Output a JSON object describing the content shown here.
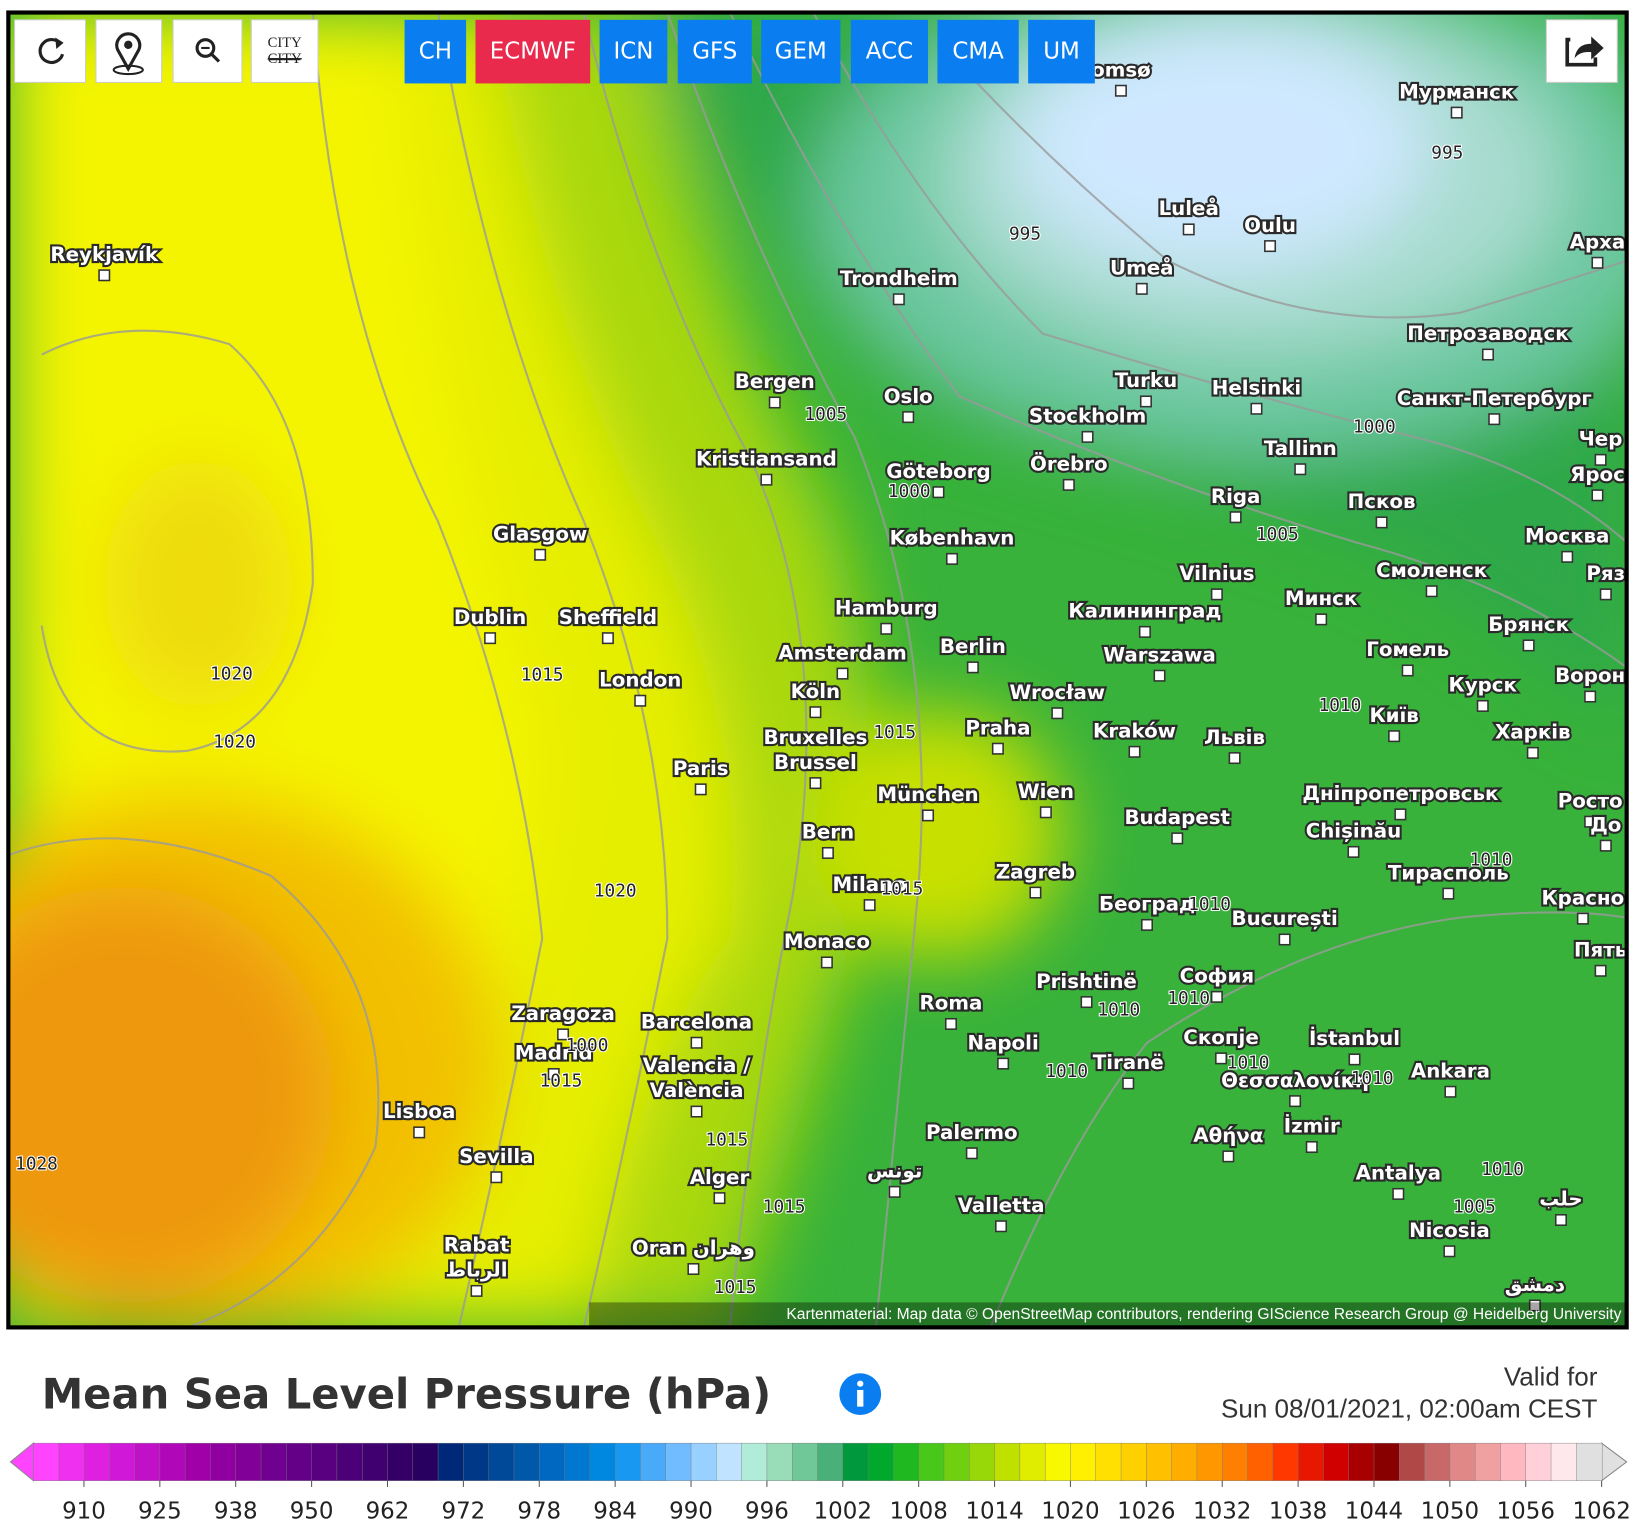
{
  "toolbar": {
    "city_button": "CITY",
    "models": [
      "CH",
      "ECMWF",
      "ICN",
      "GFS",
      "GEM",
      "ACC",
      "CMA",
      "UM"
    ],
    "active_model": "ECMWF"
  },
  "map": {
    "cities": [
      [
        "omsø"
      ],
      [
        "Мурманск"
      ],
      [
        "Luleå"
      ],
      [
        "Oulu"
      ],
      [
        "Арха"
      ],
      [
        "Reykjavík"
      ],
      [
        "Umeå"
      ],
      [
        "Trondheim"
      ],
      [
        "Петрозаводск"
      ],
      [
        "Bergen"
      ],
      [
        "Turku"
      ],
      [
        "Helsinki"
      ],
      [
        "Oslo"
      ],
      [
        "Санкт-Петербург"
      ],
      [
        "Stockholm"
      ],
      [
        "Чер"
      ],
      [
        "Tallinn"
      ],
      [
        "Kristiansand"
      ],
      [
        "Örebro"
      ],
      [
        "Göteborg"
      ],
      [
        "Ярос"
      ],
      [
        "Riga"
      ],
      [
        "Псков"
      ],
      [
        "Glasgow"
      ],
      [
        "Москва"
      ],
      [
        "København"
      ],
      [
        "Смоленск"
      ],
      [
        "Ряз"
      ],
      [
        "Vilnius"
      ],
      [
        "Минск"
      ],
      [
        "Калининград"
      ],
      [
        "Hamburg"
      ],
      [
        "Dublin"
      ],
      [
        "Sheffield"
      ],
      [
        "Брянск"
      ],
      [
        "Berlin"
      ],
      [
        "Гомель"
      ],
      [
        "Amsterdam"
      ],
      [
        "Warszawa"
      ],
      [
        "Ворон"
      ],
      [
        "London"
      ],
      [
        "Курск"
      ],
      [
        "Köln"
      ],
      [
        "Wrocław"
      ],
      [
        "Київ"
      ],
      [
        "Praha"
      ],
      [
        "Kraków"
      ],
      [
        "Харків"
      ],
      [
        "Bruxelles",
        "Brussel"
      ],
      [
        "Львів"
      ],
      [
        "Paris"
      ],
      [
        "Wien"
      ],
      [
        "München"
      ],
      [
        "Дніпропетровськ"
      ],
      [
        "Росто"
      ],
      [
        "Budapest"
      ],
      [
        "До"
      ],
      [
        "Bern"
      ],
      [
        "Chișinău"
      ],
      [
        "Zagreb"
      ],
      [
        "Тирасполь"
      ],
      [
        "Milano"
      ],
      [
        "Красно"
      ],
      [
        "Београд"
      ],
      [
        "București"
      ],
      [
        "Monaco"
      ],
      [
        "Пять"
      ],
      [
        "София"
      ],
      [
        "Prishtinë"
      ],
      [
        "Roma"
      ],
      [
        "Zaragoza"
      ],
      [
        "Barcelona"
      ],
      [
        "Скопје"
      ],
      [
        "İstanbul"
      ],
      [
        "Napoli"
      ],
      [
        "Madrid"
      ],
      [
        "Tiranë"
      ],
      [
        "Valencia /",
        "València"
      ],
      [
        "Ankara"
      ],
      [
        "Θεσσαλονίκη"
      ],
      [
        "Lisboa"
      ],
      [
        "İzmir"
      ],
      [
        "Palermo"
      ],
      [
        "Αθήνα"
      ],
      [
        "Sevilla"
      ],
      [
        "تونس"
      ],
      [
        "Antalya"
      ],
      [
        "Alger"
      ],
      [
        "حلب"
      ],
      [
        "Valletta"
      ],
      [
        "Nicosia"
      ],
      [
        "Rabat",
        "الرباط"
      ],
      [
        "Oran وهران"
      ],
      [
        "دمشق"
      ]
    ],
    "isobar_labels": [
      "995",
      "995",
      "1005",
      "1000",
      "1000",
      "1005",
      "1020",
      "1020",
      "1015",
      "1015",
      "1010",
      "1020",
      "1015",
      "1010",
      "1010",
      "1010",
      "1010",
      "1000",
      "1015",
      "1010",
      "1010",
      "1010",
      "1015",
      "1015",
      "1010",
      "1005",
      "1015",
      "1028"
    ],
    "attribution": "Kartenmaterial: Map data © OpenStreetMap contributors, rendering GIScience Research Group @ Heidelberg University"
  },
  "legend": {
    "title": "Mean Sea Level Pressure (hPa)",
    "valid_label": "Valid for",
    "valid_time": "Sun 08/01/2021, 02:00am CEST",
    "colors": [
      "#ff44ff",
      "#f030f0",
      "#e020e0",
      "#d018d8",
      "#c010c8",
      "#b008b8",
      "#a000a8",
      "#9000a0",
      "#800098",
      "#700090",
      "#640088",
      "#580080",
      "#4c0078",
      "#400070",
      "#340068",
      "#280060",
      "#002878",
      "#003888",
      "#004898",
      "#0058a8",
      "#0068c0",
      "#0078d0",
      "#0088e0",
      "#1898f0",
      "#48aaf8",
      "#70bcff",
      "#98d0ff",
      "#c0e4ff",
      "#b0ecd8",
      "#98dcb8",
      "#70c898",
      "#48b078",
      "#00983c",
      "#00a82c",
      "#20b820",
      "#48c818",
      "#70d010",
      "#98d808",
      "#c0e000",
      "#e0ec00",
      "#f8f800",
      "#ffef00",
      "#ffe000",
      "#ffd000",
      "#ffc000",
      "#ffae00",
      "#ff9800",
      "#ff8000",
      "#ff6000",
      "#ff3800",
      "#e81800",
      "#d00000",
      "#a80000",
      "#880000",
      "#b04848",
      "#c86868",
      "#e08888",
      "#f0a0a0",
      "#ffb8c0",
      "#ffd0d8",
      "#ffe8ec",
      "#e0e0e0"
    ],
    "ticks": [
      910,
      925,
      938,
      950,
      962,
      972,
      978,
      984,
      990,
      996,
      1002,
      1008,
      1014,
      1020,
      1026,
      1032,
      1038,
      1044,
      1050,
      1056,
      1062
    ]
  }
}
